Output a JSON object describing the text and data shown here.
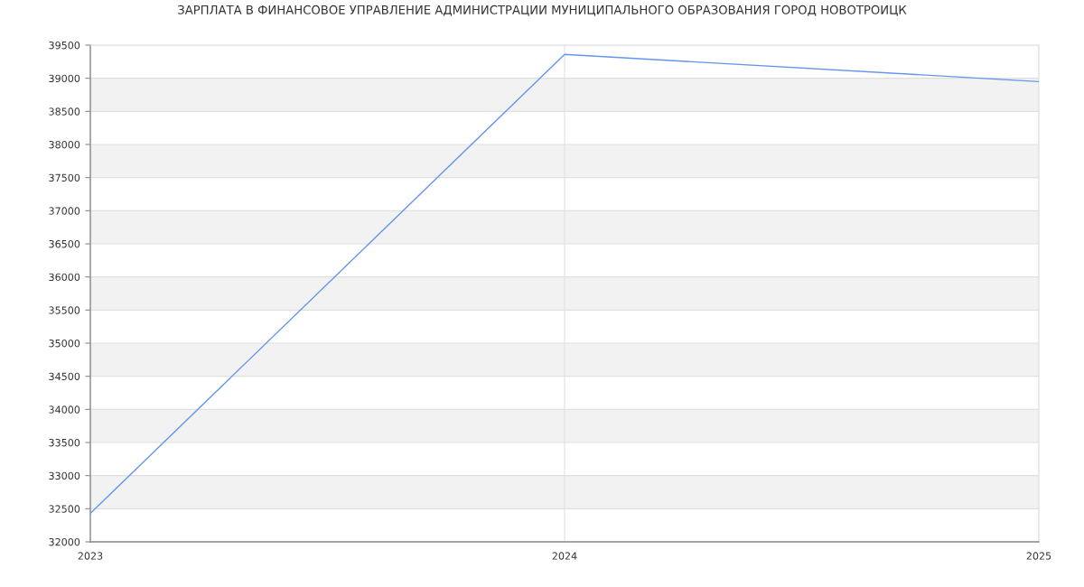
{
  "chart_data": {
    "type": "line",
    "title": "ЗАРПЛАТА В ФИНАНСОВОЕ УПРАВЛЕНИЕ АДМИНИСТРАЦИИ МУНИЦИПАЛЬНОГО ОБРАЗОВАНИЯ ГОРОД НОВОТРОИЦК",
    "x": [
      2023,
      2024,
      2025
    ],
    "series": [
      {
        "color": "#6495ed",
        "values": [
          32430,
          39360,
          38950
        ]
      }
    ],
    "xlim": [
      2023,
      2025
    ],
    "xticks": [
      2023,
      2024,
      2025
    ],
    "ylim": [
      32000,
      39500
    ],
    "yticks": [
      32000,
      32500,
      33000,
      33500,
      34000,
      34500,
      35000,
      35500,
      36000,
      36500,
      37000,
      37500,
      38000,
      38500,
      39000,
      39500
    ],
    "grid": true,
    "bands": [
      {
        "axis": "y",
        "from": 32500,
        "to": 33000,
        "color": "#f2f2f2"
      },
      {
        "axis": "y",
        "from": 33500,
        "to": 34000,
        "color": "#f2f2f2"
      },
      {
        "axis": "y",
        "from": 34500,
        "to": 35000,
        "color": "#f2f2f2"
      },
      {
        "axis": "y",
        "from": 35500,
        "to": 36000,
        "color": "#f2f2f2"
      },
      {
        "axis": "y",
        "from": 36500,
        "to": 37000,
        "color": "#f2f2f2"
      },
      {
        "axis": "y",
        "from": 37500,
        "to": 38000,
        "color": "#f2f2f2"
      },
      {
        "axis": "y",
        "from": 38500,
        "to": 39000,
        "color": "#f2f2f2"
      }
    ]
  }
}
